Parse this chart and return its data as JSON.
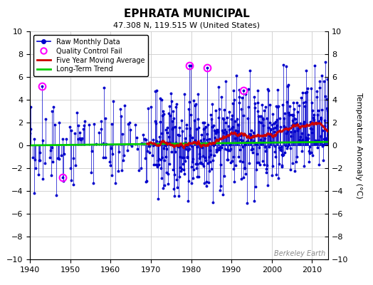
{
  "title": "EPHRATA MUNICIPAL",
  "subtitle": "47.308 N, 119.515 W (United States)",
  "ylabel": "Temperature Anomaly (°C)",
  "watermark": "Berkeley Earth",
  "xlim": [
    1940,
    2014
  ],
  "ylim": [
    -10,
    10
  ],
  "yticks": [
    -10,
    -8,
    -6,
    -4,
    -2,
    0,
    2,
    4,
    6,
    8,
    10
  ],
  "xticks": [
    1940,
    1950,
    1960,
    1970,
    1980,
    1990,
    2000,
    2010
  ],
  "bg_color": "#ffffff",
  "plot_bg_color": "#ffffff",
  "raw_color": "#0000cc",
  "qc_color": "#ff00ff",
  "moving_avg_color": "#cc0000",
  "trend_color": "#00cc00",
  "grid_color": "#cccccc",
  "seed": 42
}
